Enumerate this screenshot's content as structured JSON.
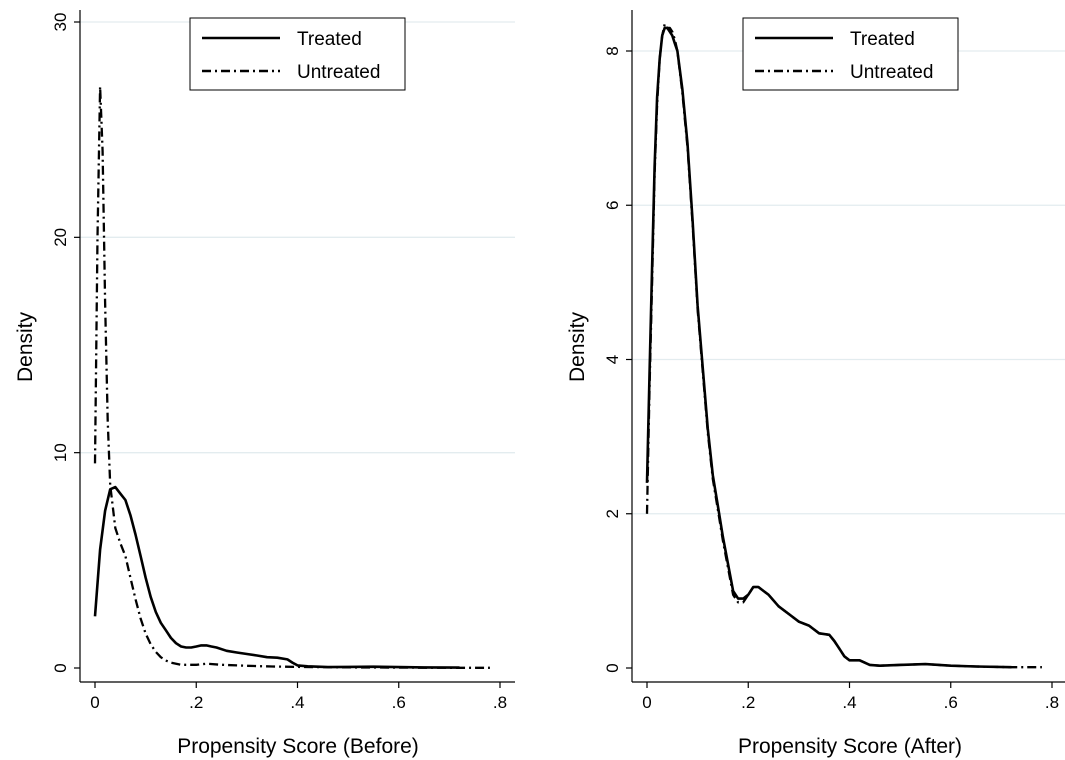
{
  "chart_data": [
    {
      "type": "line",
      "xlabel": "Propensity Score (Before)",
      "ylabel": "Density",
      "xlim": [
        0,
        0.8
      ],
      "ylim": [
        0,
        30
      ],
      "xticks": [
        0,
        0.2,
        0.4,
        0.6,
        0.8
      ],
      "xtick_labels": [
        "0",
        ".2",
        ".4",
        ".6",
        ".8"
      ],
      "yticks": [
        0,
        10,
        20,
        30
      ],
      "ytick_labels": [
        "0",
        "10",
        "20",
        "30"
      ],
      "grid": true,
      "legend_position": "top-center",
      "series": [
        {
          "name": "Treated",
          "style": "solid",
          "x": [
            0.0,
            0.01,
            0.02,
            0.03,
            0.04,
            0.05,
            0.06,
            0.07,
            0.08,
            0.09,
            0.1,
            0.11,
            0.12,
            0.13,
            0.14,
            0.15,
            0.16,
            0.17,
            0.18,
            0.19,
            0.2,
            0.21,
            0.22,
            0.23,
            0.24,
            0.26,
            0.28,
            0.3,
            0.32,
            0.34,
            0.36,
            0.38,
            0.39,
            0.4,
            0.42,
            0.44,
            0.46,
            0.5,
            0.55,
            0.6,
            0.65,
            0.72
          ],
          "y": [
            2.4,
            5.5,
            7.3,
            8.3,
            8.4,
            8.1,
            7.8,
            7.1,
            6.2,
            5.2,
            4.2,
            3.3,
            2.6,
            2.1,
            1.75,
            1.4,
            1.15,
            1.0,
            0.95,
            0.95,
            1.0,
            1.05,
            1.05,
            1.0,
            0.95,
            0.8,
            0.72,
            0.65,
            0.58,
            0.5,
            0.48,
            0.4,
            0.25,
            0.12,
            0.08,
            0.06,
            0.04,
            0.05,
            0.06,
            0.04,
            0.03,
            0.02
          ]
        },
        {
          "name": "Untreated",
          "style": "dashdot",
          "x": [
            0.0,
            0.005,
            0.01,
            0.015,
            0.02,
            0.025,
            0.03,
            0.04,
            0.05,
            0.06,
            0.07,
            0.08,
            0.09,
            0.1,
            0.11,
            0.12,
            0.13,
            0.14,
            0.15,
            0.17,
            0.2,
            0.22,
            0.25,
            0.3,
            0.35,
            0.4,
            0.5,
            0.6,
            0.7,
            0.78
          ],
          "y": [
            9.5,
            20.0,
            27.0,
            24.0,
            17.0,
            11.5,
            8.5,
            6.5,
            5.8,
            5.2,
            4.2,
            3.2,
            2.3,
            1.6,
            1.1,
            0.75,
            0.5,
            0.35,
            0.25,
            0.15,
            0.15,
            0.2,
            0.15,
            0.1,
            0.07,
            0.05,
            0.03,
            0.02,
            0.01,
            0.01
          ]
        }
      ]
    },
    {
      "type": "line",
      "xlabel": "Propensity Score (After)",
      "ylabel": "Density",
      "xlim": [
        0,
        0.8
      ],
      "ylim": [
        0,
        8
      ],
      "xticks": [
        0,
        0.2,
        0.4,
        0.6,
        0.8
      ],
      "xtick_labels": [
        "0",
        ".2",
        ".4",
        ".6",
        ".8"
      ],
      "yticks": [
        0,
        2,
        4,
        6,
        8
      ],
      "ytick_labels": [
        "0",
        "2",
        "4",
        "6",
        "8"
      ],
      "grid": true,
      "legend_position": "top-center",
      "series": [
        {
          "name": "Treated",
          "style": "solid",
          "x": [
            0.0,
            0.005,
            0.01,
            0.015,
            0.02,
            0.025,
            0.03,
            0.035,
            0.04,
            0.045,
            0.05,
            0.055,
            0.06,
            0.07,
            0.08,
            0.09,
            0.1,
            0.11,
            0.12,
            0.13,
            0.14,
            0.15,
            0.16,
            0.17,
            0.18,
            0.19,
            0.2,
            0.21,
            0.22,
            0.23,
            0.24,
            0.26,
            0.28,
            0.3,
            0.32,
            0.34,
            0.36,
            0.37,
            0.38,
            0.39,
            0.4,
            0.42,
            0.44,
            0.46,
            0.5,
            0.55,
            0.6,
            0.65,
            0.72
          ],
          "y": [
            2.4,
            3.8,
            5.2,
            6.5,
            7.4,
            7.9,
            8.2,
            8.3,
            8.3,
            8.25,
            8.2,
            8.1,
            8.0,
            7.5,
            6.8,
            5.8,
            4.7,
            3.9,
            3.1,
            2.5,
            2.1,
            1.7,
            1.35,
            1.0,
            0.9,
            0.9,
            0.95,
            1.05,
            1.05,
            1.0,
            0.95,
            0.8,
            0.7,
            0.6,
            0.55,
            0.45,
            0.43,
            0.35,
            0.25,
            0.15,
            0.1,
            0.1,
            0.04,
            0.03,
            0.04,
            0.05,
            0.03,
            0.02,
            0.01
          ]
        },
        {
          "name": "Untreated",
          "style": "dashdot",
          "x": [
            0.0,
            0.005,
            0.01,
            0.015,
            0.02,
            0.025,
            0.03,
            0.035,
            0.04,
            0.045,
            0.05,
            0.055,
            0.06,
            0.07,
            0.08,
            0.09,
            0.1,
            0.11,
            0.12,
            0.13,
            0.14,
            0.15,
            0.16,
            0.17,
            0.18,
            0.19,
            0.2,
            0.21,
            0.22,
            0.23,
            0.24,
            0.26,
            0.28,
            0.3,
            0.32,
            0.34,
            0.36,
            0.37,
            0.38,
            0.39,
            0.4,
            0.42,
            0.44,
            0.46,
            0.5,
            0.55,
            0.6,
            0.65,
            0.72,
            0.78
          ],
          "y": [
            2.0,
            3.6,
            5.0,
            6.4,
            7.3,
            7.9,
            8.2,
            8.35,
            8.3,
            8.3,
            8.25,
            8.15,
            8.0,
            7.45,
            6.75,
            5.75,
            4.65,
            3.85,
            3.05,
            2.45,
            2.05,
            1.65,
            1.3,
            0.95,
            0.85,
            0.85,
            0.95,
            1.05,
            1.05,
            1.0,
            0.95,
            0.8,
            0.7,
            0.6,
            0.55,
            0.45,
            0.43,
            0.35,
            0.25,
            0.15,
            0.1,
            0.1,
            0.04,
            0.03,
            0.04,
            0.05,
            0.03,
            0.02,
            0.01,
            0.01
          ]
        }
      ]
    }
  ]
}
